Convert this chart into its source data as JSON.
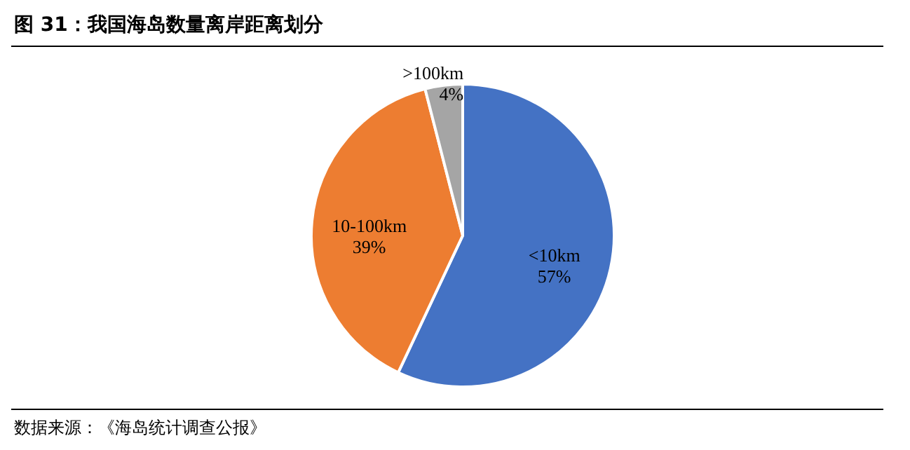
{
  "chart_data": {
    "type": "pie",
    "title": "图 31：我国海岛数量离岸距离划分",
    "categories": [
      "<10km",
      "10-100km",
      ">100km"
    ],
    "values": [
      57,
      39,
      4
    ],
    "colors": [
      "#4472c4",
      "#ed7d31",
      "#a5a5a5"
    ],
    "value_labels": [
      "57%",
      "39%",
      "4%"
    ],
    "annotations": [
      "数据来源：《海岛统计调查公报》"
    ]
  }
}
